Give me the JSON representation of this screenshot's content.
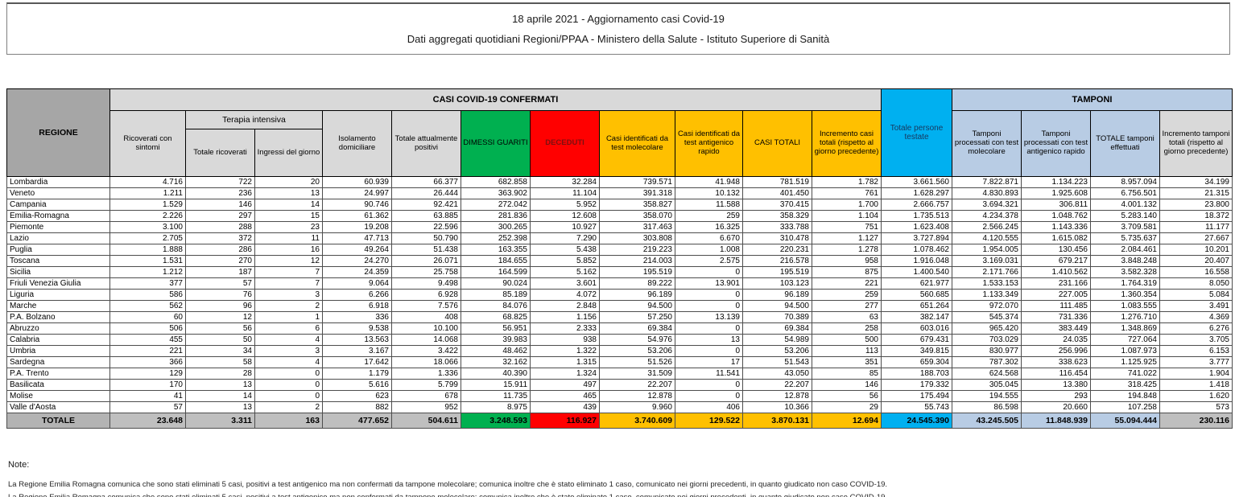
{
  "title": {
    "line1": "18 aprile 2021 - Aggiornamento casi Covid-19",
    "line2": "Dati aggregati quotidiani Regioni/PPAA - Ministero della Salute - Istituto Superiore di Sanità"
  },
  "table": {
    "headers": {
      "regione": "REGIONE",
      "casi_group": "CASI COVID-19 CONFERMATI",
      "tamponi_group": "TAMPONI",
      "ricoverati_sintomi": "Ricoverati con sintomi",
      "terapia_intensiva": "Terapia intensiva",
      "ti_totale": "Totale ricoverati",
      "ti_ingressi": "Ingressi del giorno",
      "isolamento": "Isolamento domiciliare",
      "attualmente_positivi": "Totale attualmente positivi",
      "dimessi_guariti": "DIMESSI GUARITI",
      "deceduti": "DECEDUTI",
      "casi_molecolare": "Casi identificati da test molecolare",
      "casi_antigenico": "Casi identificati da test antigenico rapido",
      "casi_totali": "CASI TOTALI",
      "incremento_casi": "Incremento casi totali (rispetto al giorno precedente)",
      "persone_testate": "Totale persone testate",
      "tamponi_molecolare": "Tamponi processati con test molecolare",
      "tamponi_antigenico": "Tamponi processati con test antigenico rapido",
      "tamponi_totale": "TOTALE tamponi effettuati",
      "incremento_tamponi": "Incremento tamponi totali (rispetto al giorno precedente)"
    },
    "rows": [
      [
        "Lombardia",
        "4.716",
        "722",
        "20",
        "60.939",
        "66.377",
        "682.858",
        "32.284",
        "739.571",
        "41.948",
        "781.519",
        "1.782",
        "3.661.560",
        "7.822.871",
        "1.134.223",
        "8.957.094",
        "34.199"
      ],
      [
        "Veneto",
        "1.211",
        "236",
        "13",
        "24.997",
        "26.444",
        "363.902",
        "11.104",
        "391.318",
        "10.132",
        "401.450",
        "761",
        "1.628.297",
        "4.830.893",
        "1.925.608",
        "6.756.501",
        "21.315"
      ],
      [
        "Campania",
        "1.529",
        "146",
        "14",
        "90.746",
        "92.421",
        "272.042",
        "5.952",
        "358.827",
        "11.588",
        "370.415",
        "1.700",
        "2.666.757",
        "3.694.321",
        "306.811",
        "4.001.132",
        "23.800"
      ],
      [
        "Emilia-Romagna",
        "2.226",
        "297",
        "15",
        "61.362",
        "63.885",
        "281.836",
        "12.608",
        "358.070",
        "259",
        "358.329",
        "1.104",
        "1.735.513",
        "4.234.378",
        "1.048.762",
        "5.283.140",
        "18.372"
      ],
      [
        "Piemonte",
        "3.100",
        "288",
        "23",
        "19.208",
        "22.596",
        "300.265",
        "10.927",
        "317.463",
        "16.325",
        "333.788",
        "751",
        "1.623.408",
        "2.566.245",
        "1.143.336",
        "3.709.581",
        "11.177"
      ],
      [
        "Lazio",
        "2.705",
        "372",
        "11",
        "47.713",
        "50.790",
        "252.398",
        "7.290",
        "303.808",
        "6.670",
        "310.478",
        "1.127",
        "3.727.894",
        "4.120.555",
        "1.615.082",
        "5.735.637",
        "27.667"
      ],
      [
        "Puglia",
        "1.888",
        "286",
        "16",
        "49.264",
        "51.438",
        "163.355",
        "5.438",
        "219.223",
        "1.008",
        "220.231",
        "1.278",
        "1.078.462",
        "1.954.005",
        "130.456",
        "2.084.461",
        "10.201"
      ],
      [
        "Toscana",
        "1.531",
        "270",
        "12",
        "24.270",
        "26.071",
        "184.655",
        "5.852",
        "214.003",
        "2.575",
        "216.578",
        "958",
        "1.916.048",
        "3.169.031",
        "679.217",
        "3.848.248",
        "20.407"
      ],
      [
        "Sicilia",
        "1.212",
        "187",
        "7",
        "24.359",
        "25.758",
        "164.599",
        "5.162",
        "195.519",
        "0",
        "195.519",
        "875",
        "1.400.540",
        "2.171.766",
        "1.410.562",
        "3.582.328",
        "16.558"
      ],
      [
        "Friuli Venezia Giulia",
        "377",
        "57",
        "7",
        "9.064",
        "9.498",
        "90.024",
        "3.601",
        "89.222",
        "13.901",
        "103.123",
        "221",
        "621.977",
        "1.533.153",
        "231.166",
        "1.764.319",
        "8.050"
      ],
      [
        "Liguria",
        "586",
        "76",
        "3",
        "6.266",
        "6.928",
        "85.189",
        "4.072",
        "96.189",
        "0",
        "96.189",
        "259",
        "560.685",
        "1.133.349",
        "227.005",
        "1.360.354",
        "5.084"
      ],
      [
        "Marche",
        "562",
        "96",
        "2",
        "6.918",
        "7.576",
        "84.076",
        "2.848",
        "94.500",
        "0",
        "94.500",
        "277",
        "651.264",
        "972.070",
        "111.485",
        "1.083.555",
        "3.491"
      ],
      [
        "P.A. Bolzano",
        "60",
        "12",
        "1",
        "336",
        "408",
        "68.825",
        "1.156",
        "57.250",
        "13.139",
        "70.389",
        "63",
        "382.147",
        "545.374",
        "731.336",
        "1.276.710",
        "4.369"
      ],
      [
        "Abruzzo",
        "506",
        "56",
        "6",
        "9.538",
        "10.100",
        "56.951",
        "2.333",
        "69.384",
        "0",
        "69.384",
        "258",
        "603.016",
        "965.420",
        "383.449",
        "1.348.869",
        "6.276"
      ],
      [
        "Calabria",
        "455",
        "50",
        "4",
        "13.563",
        "14.068",
        "39.983",
        "938",
        "54.976",
        "13",
        "54.989",
        "500",
        "679.431",
        "703.029",
        "24.035",
        "727.064",
        "3.705"
      ],
      [
        "Umbria",
        "221",
        "34",
        "3",
        "3.167",
        "3.422",
        "48.462",
        "1.322",
        "53.206",
        "0",
        "53.206",
        "113",
        "349.815",
        "830.977",
        "256.996",
        "1.087.973",
        "6.153"
      ],
      [
        "Sardegna",
        "366",
        "58",
        "4",
        "17.642",
        "18.066",
        "32.162",
        "1.315",
        "51.526",
        "17",
        "51.543",
        "351",
        "659.304",
        "787.302",
        "338.623",
        "1.125.925",
        "3.777"
      ],
      [
        "P.A. Trento",
        "129",
        "28",
        "0",
        "1.179",
        "1.336",
        "40.390",
        "1.324",
        "31.509",
        "11.541",
        "43.050",
        "85",
        "188.703",
        "624.568",
        "116.454",
        "741.022",
        "1.904"
      ],
      [
        "Basilicata",
        "170",
        "13",
        "0",
        "5.616",
        "5.799",
        "15.911",
        "497",
        "22.207",
        "0",
        "22.207",
        "146",
        "179.332",
        "305.045",
        "13.380",
        "318.425",
        "1.418"
      ],
      [
        "Molise",
        "41",
        "14",
        "0",
        "623",
        "678",
        "11.735",
        "465",
        "12.878",
        "0",
        "12.878",
        "56",
        "175.494",
        "194.555",
        "293",
        "194.848",
        "1.620"
      ],
      [
        "Valle d'Aosta",
        "57",
        "13",
        "2",
        "882",
        "952",
        "8.975",
        "439",
        "9.960",
        "406",
        "10.366",
        "29",
        "55.743",
        "86.598",
        "20.660",
        "107.258",
        "573"
      ]
    ],
    "totals": [
      "TOTALE",
      "23.648",
      "3.311",
      "163",
      "477.652",
      "504.611",
      "3.248.593",
      "116.927",
      "3.740.609",
      "129.522",
      "3.870.131",
      "12.694",
      "24.545.390",
      "43.245.505",
      "11.848.939",
      "55.094.444",
      "230.116"
    ]
  },
  "notes": {
    "heading": "Note:",
    "line1": "La Regione Emilia Romagna comunica che sono stati eliminati 5 casi, positivi a test antigenico ma non confermati da tampone molecolare; comunica inoltre che è stato eliminato 1 caso, comunicato nei giorni precedenti, in quanto giudicato non caso COVID-19."
  },
  "colors": {
    "green": "#00b050",
    "red": "#ff0000",
    "yellow": "#ffc000",
    "cyan": "#00b0f0",
    "light_blue": "#b8cce4",
    "header_gray": "#d9d9d9",
    "region_gray": "#a6a6a6",
    "totals_gray": "#bfbfbf"
  }
}
